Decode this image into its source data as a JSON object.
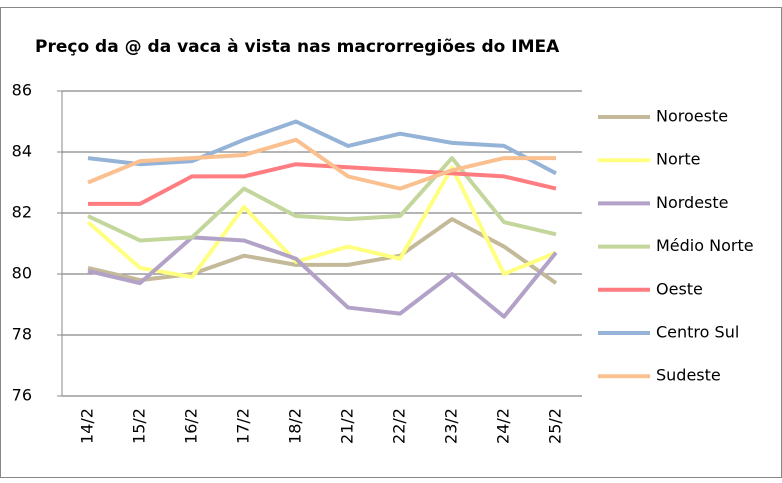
{
  "chart_data": {
    "type": "line",
    "title": "Preço da @ da vaca à vista nas macrorregiões do IMEA",
    "categories": [
      "14/2",
      "15/2",
      "16/2",
      "17/2",
      "18/2",
      "21/2",
      "22/2",
      "23/2",
      "24/2",
      "25/2"
    ],
    "series": [
      {
        "name": "Noroeste",
        "color": "#c4b998",
        "values": [
          80.2,
          79.8,
          80.0,
          80.6,
          80.3,
          80.3,
          80.6,
          81.8,
          80.9,
          79.7
        ]
      },
      {
        "name": "Norte",
        "color": "#ffff80",
        "values": [
          81.7,
          80.2,
          79.9,
          82.2,
          80.4,
          80.9,
          80.5,
          83.5,
          80.0,
          80.7
        ]
      },
      {
        "name": "Nordeste",
        "color": "#b3a2c7",
        "values": [
          80.1,
          79.7,
          81.2,
          81.1,
          80.5,
          78.9,
          78.7,
          80.0,
          78.6,
          80.7
        ]
      },
      {
        "name": "Médio Norte",
        "color": "#c3d69b",
        "values": [
          81.9,
          81.1,
          81.2,
          82.8,
          81.9,
          81.8,
          81.9,
          83.8,
          81.7,
          81.3
        ]
      },
      {
        "name": "Oeste",
        "color": "#ff7c80",
        "values": [
          82.3,
          82.3,
          83.2,
          83.2,
          83.6,
          83.5,
          83.4,
          83.3,
          83.2,
          82.8
        ]
      },
      {
        "name": "Centro Sul",
        "color": "#95b3d7",
        "values": [
          83.8,
          83.6,
          83.7,
          84.4,
          85.0,
          84.2,
          84.6,
          84.3,
          84.2,
          83.3
        ]
      },
      {
        "name": "Sudeste",
        "color": "#fac090",
        "values": [
          83.0,
          83.7,
          83.8,
          83.9,
          84.4,
          83.2,
          82.8,
          83.4,
          83.8,
          83.8
        ]
      }
    ],
    "ylim": [
      76,
      86
    ],
    "yticks": [
      76,
      78,
      80,
      82,
      84,
      86
    ],
    "grid": true,
    "legend": "right"
  }
}
